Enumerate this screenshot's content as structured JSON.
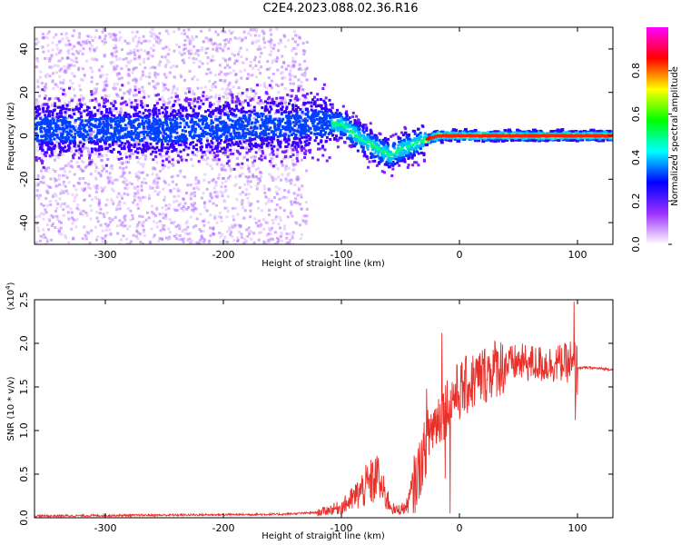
{
  "title": "C2E4.2023.088.02.36.R16",
  "chart_data": [
    {
      "type": "heatmap",
      "xlabel": "Height of straight line (km)",
      "ylabel": "Frequency (Hz)",
      "xlim": [
        -360,
        130
      ],
      "ylim": [
        -50,
        50
      ],
      "x_ticks": [
        -300,
        -200,
        -100,
        0,
        100
      ],
      "y_ticks": [
        -40,
        -20,
        0,
        20,
        40
      ],
      "colorbar": {
        "label": "Normalized spectral amplitude",
        "range": [
          0.0,
          1.0
        ],
        "ticks": [
          "0.0",
          "0.2",
          "0.4",
          "0.6",
          "0.8"
        ],
        "colors": [
          "#ffffff",
          "#9b30ff",
          "#0000ff",
          "#00ffff",
          "#00ff00",
          "#ffff00",
          "#ff0000",
          "#ff00ff"
        ]
      },
      "ridge": [
        {
          "x": -350,
          "y": 3
        },
        {
          "x": -300,
          "y": 3
        },
        {
          "x": -250,
          "y": 3
        },
        {
          "x": -200,
          "y": 4
        },
        {
          "x": -150,
          "y": 5
        },
        {
          "x": -120,
          "y": 6
        },
        {
          "x": -100,
          "y": 5
        },
        {
          "x": -90,
          "y": 1
        },
        {
          "x": -80,
          "y": -3
        },
        {
          "x": -70,
          "y": -6
        },
        {
          "x": -60,
          "y": -9
        },
        {
          "x": -50,
          "y": -6
        },
        {
          "x": -40,
          "y": -4
        },
        {
          "x": -30,
          "y": -2
        },
        {
          "x": -20,
          "y": 0
        },
        {
          "x": -10,
          "y": 0
        },
        {
          "x": 0,
          "y": 0
        },
        {
          "x": 50,
          "y": 0
        },
        {
          "x": 100,
          "y": 0
        },
        {
          "x": 130,
          "y": 0
        }
      ]
    },
    {
      "type": "line",
      "xlabel": "Height of straight line (km)",
      "ylabel": "SNR (10 * v/v)",
      "yscale_label": "(x10",
      "yscale_exp": "4",
      "yscale_close": ")",
      "xlim": [
        -360,
        130
      ],
      "ylim": [
        0,
        2.5
      ],
      "x_ticks": [
        -300,
        -200,
        -100,
        0,
        100
      ],
      "y_ticks": [
        "0.0",
        "0.5",
        "1.0",
        "1.5",
        "2.0",
        "2.5"
      ],
      "color": "#e8302a",
      "envelope": [
        {
          "x": -360,
          "y": 0.02
        },
        {
          "x": -250,
          "y": 0.03
        },
        {
          "x": -150,
          "y": 0.04
        },
        {
          "x": -120,
          "y": 0.06
        },
        {
          "x": -100,
          "y": 0.12
        },
        {
          "x": -90,
          "y": 0.22
        },
        {
          "x": -80,
          "y": 0.35
        },
        {
          "x": -70,
          "y": 0.45
        },
        {
          "x": -63,
          "y": 0.25
        },
        {
          "x": -55,
          "y": 0.08
        },
        {
          "x": -45,
          "y": 0.12
        },
        {
          "x": -35,
          "y": 0.5
        },
        {
          "x": -25,
          "y": 1.0
        },
        {
          "x": -15,
          "y": 1.2
        },
        {
          "x": -5,
          "y": 1.4
        },
        {
          "x": 10,
          "y": 1.55
        },
        {
          "x": 30,
          "y": 1.72
        },
        {
          "x": 50,
          "y": 1.78
        },
        {
          "x": 70,
          "y": 1.76
        },
        {
          "x": 90,
          "y": 1.78
        },
        {
          "x": 98,
          "y": 1.7
        },
        {
          "x": 100,
          "y": 1.72
        },
        {
          "x": 110,
          "y": 1.72
        },
        {
          "x": 130,
          "y": 1.7
        }
      ],
      "spikes": [
        {
          "x": -15,
          "y": 2.12
        },
        {
          "x": -12,
          "y": 0.45
        },
        {
          "x": -28,
          "y": 1.48
        },
        {
          "x": -8,
          "y": 0.05
        },
        {
          "x": -69,
          "y": 0.62
        },
        {
          "x": 97,
          "y": 2.48
        },
        {
          "x": 98,
          "y": 1.12
        },
        {
          "x": 94,
          "y": 2.02
        }
      ]
    }
  ]
}
